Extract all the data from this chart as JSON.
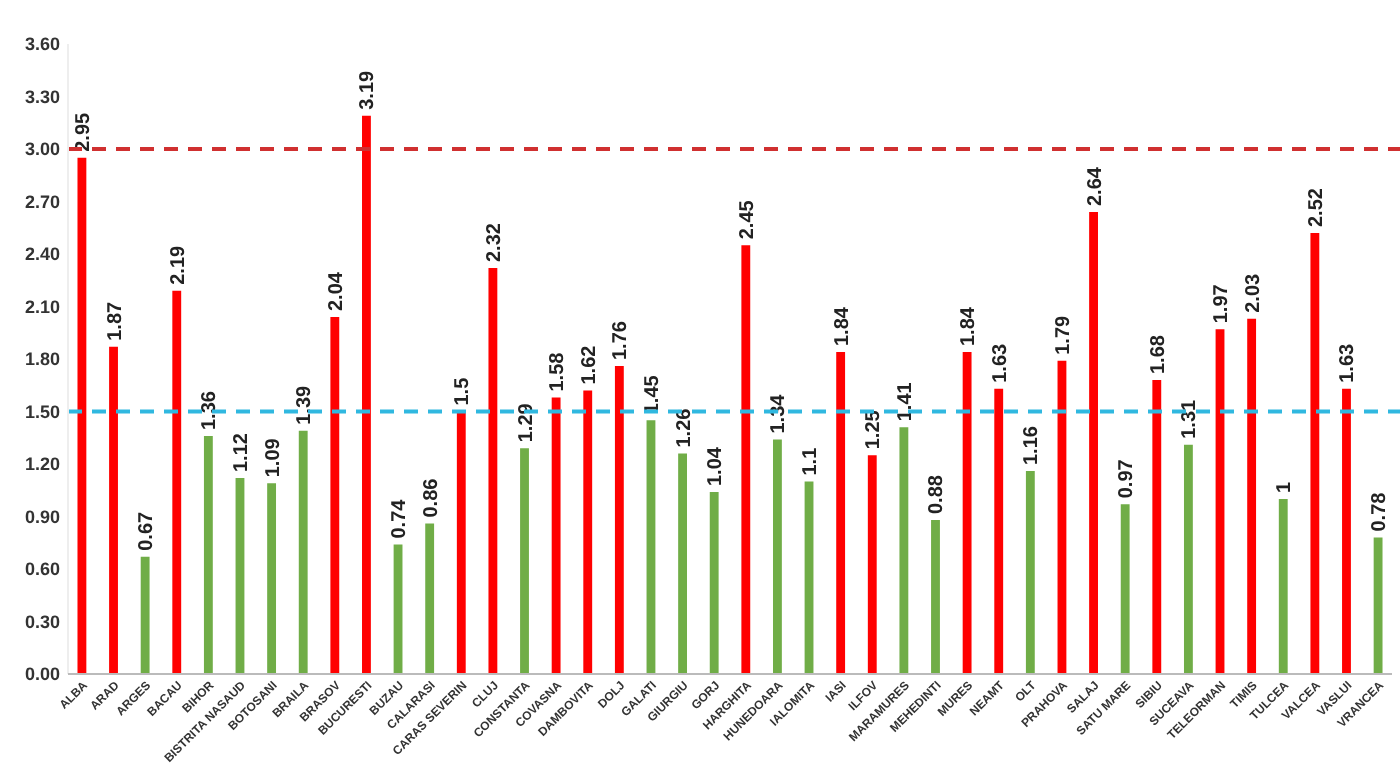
{
  "chart_data": {
    "type": "bar",
    "categories": [
      "ALBA",
      "ARAD",
      "ARGES",
      "BACAU",
      "BIHOR",
      "BISTRITA NASAUD",
      "BOTOSANI",
      "BRAILA",
      "BRASOV",
      "BUCURESTI",
      "BUZAU",
      "CALARASI",
      "CARAS SEVERIN",
      "CLUJ",
      "CONSTANTA",
      "COVASNA",
      "DAMBOVITA",
      "DOLJ",
      "GALATI",
      "GIURGIU",
      "GORJ",
      "HARGHITA",
      "HUNEDOARA",
      "IALOMITA",
      "IASI",
      "ILFOV",
      "MARAMURES",
      "MEHEDINTI",
      "MURES",
      "NEAMT",
      "OLT",
      "PRAHOVA",
      "SALAJ",
      "SATU MARE",
      "SIBIU",
      "SUCEAVA",
      "TELEORMAN",
      "TIMIS",
      "TULCEA",
      "VALCEA",
      "VASLUI",
      "VRANCEA"
    ],
    "values": [
      2.95,
      1.87,
      0.67,
      2.19,
      1.36,
      1.12,
      1.09,
      1.39,
      2.04,
      3.19,
      0.74,
      0.86,
      1.5,
      2.32,
      1.29,
      1.58,
      1.62,
      1.76,
      1.45,
      1.26,
      1.04,
      2.45,
      1.34,
      1.1,
      1.84,
      1.25,
      1.41,
      0.88,
      1.84,
      1.63,
      1.16,
      1.79,
      2.64,
      0.97,
      1.68,
      1.31,
      1.97,
      2.03,
      1,
      2.52,
      1.63,
      0.78
    ],
    "colors": [
      "#ff0000",
      "#ff0000",
      "#70ad47",
      "#ff0000",
      "#70ad47",
      "#70ad47",
      "#70ad47",
      "#70ad47",
      "#ff0000",
      "#ff0000",
      "#70ad47",
      "#70ad47",
      "#ff0000",
      "#ff0000",
      "#70ad47",
      "#ff0000",
      "#ff0000",
      "#ff0000",
      "#70ad47",
      "#70ad47",
      "#70ad47",
      "#ff0000",
      "#70ad47",
      "#70ad47",
      "#ff0000",
      "#ff0000",
      "#70ad47",
      "#70ad47",
      "#ff0000",
      "#ff0000",
      "#70ad47",
      "#ff0000",
      "#ff0000",
      "#70ad47",
      "#ff0000",
      "#70ad47",
      "#ff0000",
      "#ff0000",
      "#70ad47",
      "#ff0000",
      "#ff0000",
      "#70ad47"
    ],
    "ylim": [
      0,
      3.6
    ],
    "yticks": [
      {
        "value": 0,
        "label": "0.00"
      },
      {
        "value": 0.3,
        "label": "0.30"
      },
      {
        "value": 0.6,
        "label": "0.60"
      },
      {
        "value": 0.9,
        "label": "0.90"
      },
      {
        "value": 1.2,
        "label": "1.20"
      },
      {
        "value": 1.5,
        "label": "1.50"
      },
      {
        "value": 1.8,
        "label": "1.80"
      },
      {
        "value": 2.1,
        "label": "2.10"
      },
      {
        "value": 2.4,
        "label": "2.40"
      },
      {
        "value": 2.7,
        "label": "2.70"
      },
      {
        "value": 3,
        "label": "3.00"
      },
      {
        "value": 3.3,
        "label": "3.30"
      },
      {
        "value": 3.6,
        "label": "3.60"
      }
    ],
    "ref_lines": [
      {
        "axis": "y",
        "value": 3,
        "color": "#d03030",
        "line_style": "dashed"
      },
      {
        "axis": "y",
        "value": 1.5,
        "color": "#30b8e0",
        "line_style": "dashed"
      }
    ],
    "data_labels": true,
    "grid": false
  }
}
